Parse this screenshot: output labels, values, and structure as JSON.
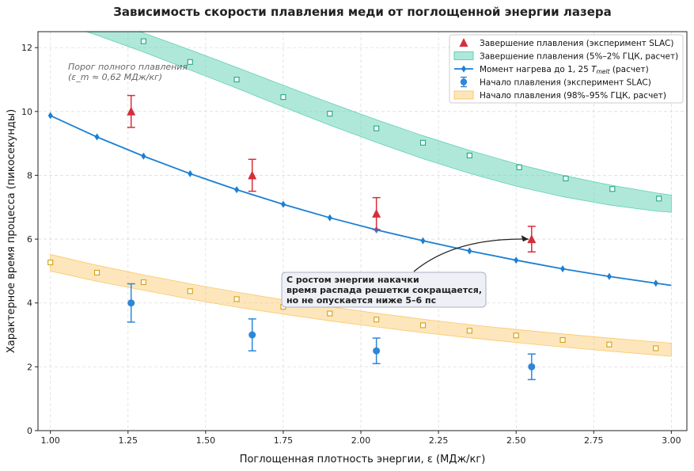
{
  "chart_data": {
    "type": "line",
    "title": "Зависимость скорости плавления меди от поглощенной энергии лазера",
    "xlabel": "Поглощенная плотность энергии, ε (МДж/кг)",
    "ylabel": "Характерное время процесса (пикосекунды)",
    "xlim": [
      0.96,
      3.05
    ],
    "ylim": [
      0,
      12.5
    ],
    "xticks": [
      1.0,
      1.25,
      1.5,
      1.75,
      2.0,
      2.25,
      2.5,
      2.75,
      3.0
    ],
    "xtick_labels": [
      "1.00",
      "1.25",
      "1.50",
      "1.75",
      "2.00",
      "2.25",
      "2.50",
      "2.75",
      "3.00"
    ],
    "yticks": [
      0,
      2,
      4,
      6,
      8,
      10,
      12
    ],
    "ytick_labels": [
      "0",
      "2",
      "4",
      "6",
      "8",
      "10",
      "12"
    ],
    "grid": true,
    "legend_position": "top-right",
    "colors": {
      "completion": "#d62f3a",
      "completion_band": "#5fd1b3",
      "heating": "#1a7fd4",
      "onset": "#2f86d9",
      "onset_band": "#fbc76a",
      "completion_marker": "#1fa97f",
      "onset_marker": "#d4a012"
    },
    "series": [
      {
        "name": "Завершение плавления (эксперимент SLAC)",
        "kind": "errorbar",
        "marker": "triangle",
        "x": [
          1.26,
          1.65,
          2.05,
          2.55
        ],
        "y": [
          10.0,
          8.0,
          6.8,
          6.0
        ],
        "err": [
          0.5,
          0.5,
          0.5,
          0.4
        ]
      },
      {
        "name": "Завершение плавления (5%–2% ГЦК, расчет)",
        "kind": "band",
        "x": [
          1.0,
          1.15,
          1.3,
          1.45,
          1.6,
          1.75,
          1.9,
          2.05,
          2.2,
          2.35,
          2.5,
          2.65,
          2.8,
          2.95,
          3.0
        ],
        "y_low": [
          12.87,
          12.39,
          11.86,
          11.3,
          10.73,
          10.14,
          9.57,
          9.03,
          8.52,
          8.06,
          7.66,
          7.33,
          7.07,
          6.88,
          6.84
        ],
        "y_high": [
          13.42,
          12.96,
          12.46,
          11.93,
          11.38,
          10.82,
          10.27,
          9.74,
          9.24,
          8.78,
          8.36,
          8.0,
          7.7,
          7.45,
          7.38
        ],
        "marker_x": [
          1.3,
          1.45,
          1.6,
          1.75,
          1.9,
          2.05,
          2.2,
          2.35,
          2.51,
          2.66,
          2.81,
          2.96
        ],
        "marker_y": [
          12.2,
          11.55,
          11.0,
          10.45,
          9.93,
          9.47,
          9.02,
          8.62,
          8.25,
          7.9,
          7.57,
          7.27
        ]
      },
      {
        "name": "Момент нагрева до 1,25 T_melt (расчет)",
        "kind": "line",
        "marker": "diamond",
        "x": [
          1.0,
          1.15,
          1.3,
          1.45,
          1.6,
          1.75,
          1.9,
          2.05,
          2.2,
          2.35,
          2.5,
          2.65,
          2.8,
          2.95,
          3.0
        ],
        "y": [
          9.87,
          9.2,
          8.6,
          8.05,
          7.55,
          7.09,
          6.67,
          6.29,
          5.95,
          5.63,
          5.34,
          5.07,
          4.83,
          4.62,
          4.55
        ],
        "marker_x": [
          1.0,
          1.15,
          1.3,
          1.45,
          1.6,
          1.75,
          1.9,
          2.05,
          2.2,
          2.35,
          2.5,
          2.65,
          2.8,
          2.95
        ],
        "marker_y": [
          9.87,
          9.2,
          8.6,
          8.05,
          7.55,
          7.09,
          6.67,
          6.29,
          5.95,
          5.63,
          5.34,
          5.07,
          4.83,
          4.62
        ]
      },
      {
        "name": "Начало плавления (эксперимент SLAC)",
        "kind": "errorbar",
        "marker": "circle",
        "x": [
          1.26,
          1.65,
          2.05,
          2.55
        ],
        "y": [
          4.0,
          3.0,
          2.5,
          2.0
        ],
        "err": [
          0.6,
          0.5,
          0.4,
          0.4
        ]
      },
      {
        "name": "Начало плавления (98%–95% ГЦК, расчет)",
        "kind": "band",
        "x": [
          1.0,
          1.15,
          1.3,
          1.45,
          1.6,
          1.75,
          1.9,
          2.05,
          2.2,
          2.35,
          2.5,
          2.65,
          2.8,
          2.95,
          3.0
        ],
        "y_low": [
          5.0,
          4.68,
          4.4,
          4.12,
          3.87,
          3.65,
          3.44,
          3.25,
          3.07,
          2.91,
          2.76,
          2.62,
          2.49,
          2.37,
          2.33
        ],
        "y_high": [
          5.52,
          5.18,
          4.88,
          4.6,
          4.34,
          4.1,
          3.88,
          3.68,
          3.49,
          3.32,
          3.17,
          3.03,
          2.9,
          2.78,
          2.74
        ],
        "marker_x": [
          1.0,
          1.15,
          1.3,
          1.45,
          1.6,
          1.75,
          1.9,
          2.05,
          2.2,
          2.35,
          2.5,
          2.65,
          2.8,
          2.95
        ],
        "marker_y": [
          5.27,
          4.95,
          4.65,
          4.37,
          4.12,
          3.88,
          3.67,
          3.48,
          3.3,
          3.13,
          2.98,
          2.84,
          2.7,
          2.58
        ]
      }
    ],
    "legend": [
      {
        "label": "Завершение плавления (эксперимент SLAC)",
        "symbol": "triangle"
      },
      {
        "label": "Завершение плавления (5%–2% ГЦК, расчет)",
        "symbol": "band-teal"
      },
      {
        "label_main": "Момент нагрева до 1, 25 ",
        "label_math": "T",
        "label_sub": "melt",
        "label_tail": " (расчет)",
        "symbol": "line"
      },
      {
        "label": "Начало плавления (эксперимент SLAC)",
        "symbol": "circle"
      },
      {
        "label": "Начало плавления (98%–95% ГЦК, расчет)",
        "symbol": "band-orange"
      }
    ],
    "annotations": {
      "threshold_note": [
        "Порог полного плавления",
        "(ε_m ≈ 0,62 МДж/кг)"
      ],
      "callout": {
        "lines": [
          "С ростом энергии накачки",
          "время распада решетки сокращается,",
          "но не опускается ниже 5–6 пс"
        ],
        "target_x": 2.55,
        "target_y": 6.0
      }
    }
  }
}
